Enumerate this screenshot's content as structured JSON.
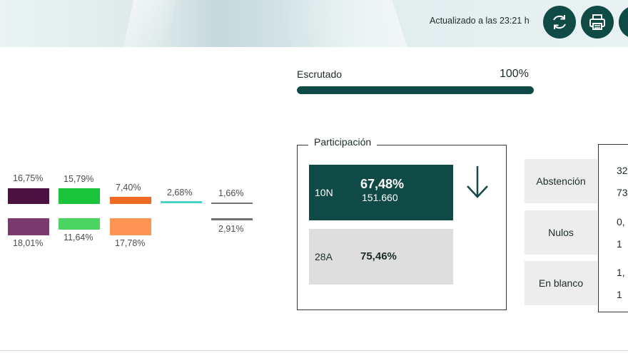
{
  "header": {
    "updated_text": "Actualizado a las 23:21 h",
    "buttons": [
      {
        "icon": "refresh-icon"
      },
      {
        "icon": "print-icon"
      },
      {
        "icon": "more-icon"
      }
    ]
  },
  "scrutiny": {
    "label": "Escrutado",
    "value_text": "100%",
    "progress": 1.0
  },
  "parties": {
    "current_pcts": [
      "16,75%",
      "15,79%",
      "7,40%",
      "2,68%",
      "1,66%"
    ],
    "previous_pcts": [
      "18,01%",
      "11,64%",
      "17,78%",
      "2,91%"
    ],
    "colors": {
      "purple_current": "#4b1240",
      "purple_previous": "#7a3a70",
      "green_current": "#19c33a",
      "green_previous": "#4cd463",
      "orange_current": "#f06a23",
      "orange_previous": "#ff9455",
      "teal": "#49d3c8",
      "gray": "#707070"
    }
  },
  "participation": {
    "title": "Participación",
    "current": {
      "code": "10N",
      "percent": "67,48%",
      "count": "151.660"
    },
    "previous": {
      "code": "28A",
      "percent": "75,46%"
    },
    "trend_icon": "arrow-down-icon"
  },
  "stats": {
    "rows": [
      {
        "label": "Abstención",
        "values": [
          "32",
          "73"
        ]
      },
      {
        "label": "Nulos",
        "values": [
          "0,",
          "1"
        ]
      },
      {
        "label": "En blanco",
        "values": [
          "1,",
          "1"
        ]
      }
    ]
  }
}
